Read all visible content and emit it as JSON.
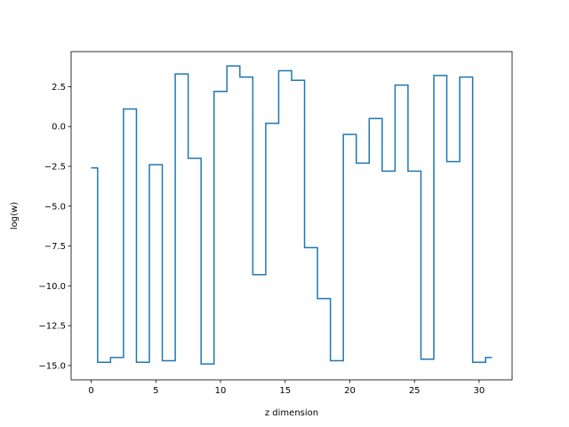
{
  "chart_data": {
    "type": "line",
    "drawstyle": "steps-mid",
    "xlabel": "z dimension",
    "ylabel": "log(w)",
    "xlim": [
      -1.55,
      32.55
    ],
    "ylim": [
      -15.9,
      4.7
    ],
    "xticks": [
      0,
      5,
      10,
      15,
      20,
      25,
      30
    ],
    "yticks": [
      -15.0,
      -12.5,
      -10.0,
      -7.5,
      -5.0,
      -2.5,
      0.0,
      2.5
    ],
    "ytick_labels": [
      "−15.0",
      "−12.5",
      "−10.0",
      "−7.5",
      "−5.0",
      "−2.5",
      "0.0",
      "2.5"
    ],
    "grid": false,
    "series": [
      {
        "color": "#1f77b4",
        "x": [
          0,
          1,
          2,
          3,
          4,
          5,
          6,
          7,
          8,
          9,
          10,
          11,
          12,
          13,
          14,
          15,
          16,
          17,
          18,
          19,
          20,
          21,
          22,
          23,
          24,
          25,
          26,
          27,
          28,
          29,
          30,
          31
        ],
        "values": [
          -2.6,
          -14.8,
          -14.5,
          1.1,
          -14.8,
          -2.4,
          -14.7,
          3.3,
          -2.0,
          -14.9,
          2.2,
          3.8,
          3.1,
          -9.3,
          0.2,
          3.5,
          2.9,
          -7.6,
          -10.8,
          -14.7,
          -0.5,
          -2.3,
          0.5,
          -2.8,
          2.6,
          -2.8,
          -14.6,
          3.2,
          -2.2,
          3.1,
          -14.8,
          -14.5
        ]
      }
    ]
  }
}
